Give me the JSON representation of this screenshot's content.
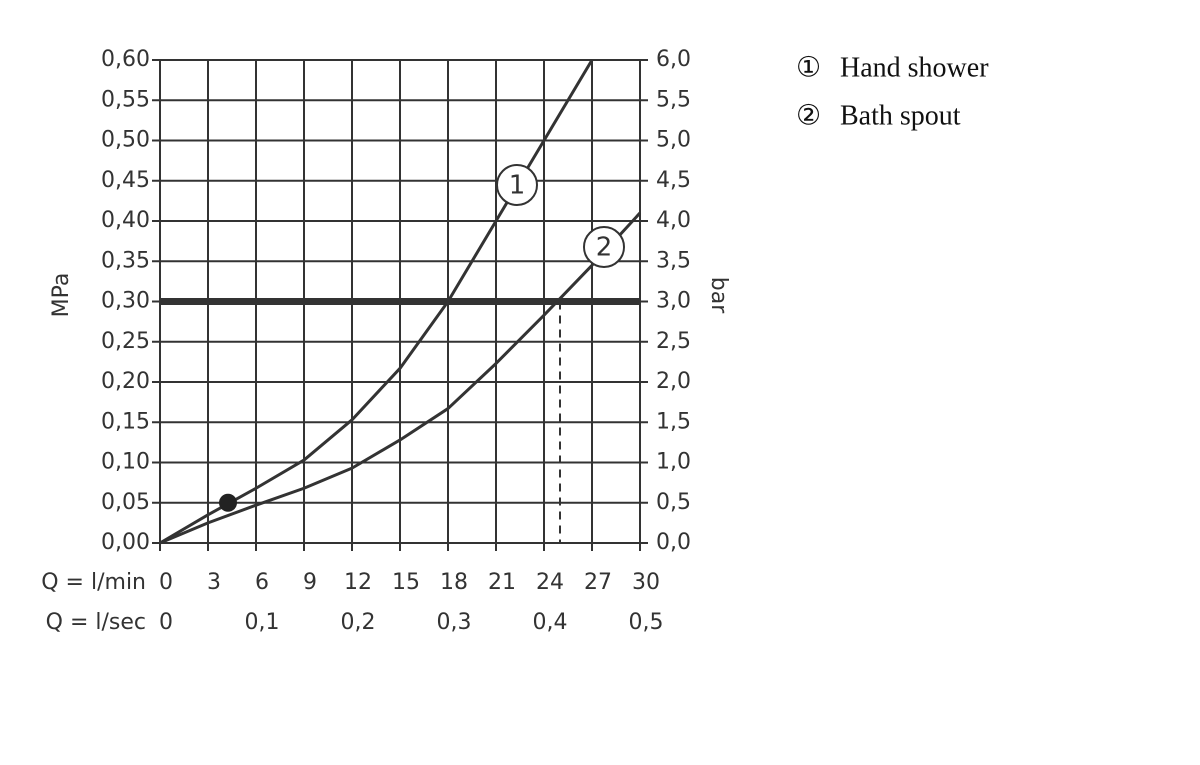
{
  "chart_data": {
    "type": "line",
    "xlabel": "Q = l/min",
    "x2label": "Q = l/sec",
    "ylabel": "MPa",
    "y2label": "bar",
    "xlim": [
      0,
      30
    ],
    "xticks": [
      0,
      3,
      6,
      9,
      12,
      15,
      18,
      21,
      24,
      27,
      30
    ],
    "x2lim": [
      0,
      0.5
    ],
    "x2ticks": [
      0,
      {
        "value": 0.1,
        "label": "0,1"
      },
      {
        "value": 0.2,
        "label": "0,2"
      },
      {
        "value": 0.3,
        "label": "0,3"
      },
      {
        "value": 0.4,
        "label": "0,4"
      },
      {
        "value": 0.5,
        "label": "0,5"
      }
    ],
    "ylim": [
      0,
      0.6
    ],
    "yticks": [
      {
        "value": 0,
        "label": "0,00"
      },
      {
        "value": 0.05,
        "label": "0,05"
      },
      {
        "value": 0.1,
        "label": "0,10"
      },
      {
        "value": 0.15,
        "label": "0,15"
      },
      {
        "value": 0.2,
        "label": "0,20"
      },
      {
        "value": 0.25,
        "label": "0,25"
      },
      {
        "value": 0.3,
        "label": "0,30"
      },
      {
        "value": 0.35,
        "label": "0,35"
      },
      {
        "value": 0.4,
        "label": "0,40"
      },
      {
        "value": 0.45,
        "label": "0,45"
      },
      {
        "value": 0.5,
        "label": "0,50"
      },
      {
        "value": 0.55,
        "label": "0,55"
      },
      {
        "value": 0.6,
        "label": "0,60"
      }
    ],
    "y2lim": [
      0,
      6
    ],
    "y2ticks": [
      {
        "value": 0,
        "label": "0,0"
      },
      {
        "value": 0.5,
        "label": "0,5"
      },
      {
        "value": 1,
        "label": "1,0"
      },
      {
        "value": 1.5,
        "label": "1,5"
      },
      {
        "value": 2,
        "label": "2,0"
      },
      {
        "value": 2.5,
        "label": "2,5"
      },
      {
        "value": 3,
        "label": "3,0"
      },
      {
        "value": 3.5,
        "label": "3,5"
      },
      {
        "value": 4,
        "label": "4,0"
      },
      {
        "value": 4.5,
        "label": "4,5"
      },
      {
        "value": 5,
        "label": "5,0"
      },
      {
        "value": 5.5,
        "label": "5,5"
      },
      {
        "value": 6,
        "label": "6,0"
      }
    ],
    "grid": true,
    "color": "#333333",
    "series": [
      {
        "name": "Hand shower",
        "symbol": "①",
        "label": "1",
        "color": "#333333",
        "x": [
          0,
          3,
          6,
          9,
          12,
          15,
          18,
          21,
          24,
          27
        ],
        "values": [
          0,
          0.035,
          0.068,
          0.103,
          0.153,
          0.217,
          0.3,
          0.4,
          0.5,
          0.6
        ]
      },
      {
        "name": "Bath spout",
        "symbol": "②",
        "label": "2",
        "color": "#333333",
        "x": [
          0,
          3,
          6,
          9,
          12,
          15,
          18,
          21,
          24,
          27,
          30
        ],
        "values": [
          0,
          0.025,
          0.047,
          0.068,
          0.093,
          0.128,
          0.167,
          0.223,
          0.283,
          0.345,
          0.41
        ]
      }
    ],
    "point": {
      "x": 4.25,
      "y": 0.05
    },
    "reference_y": 0.3,
    "reference_x": [
      18,
      25
    ]
  }
}
